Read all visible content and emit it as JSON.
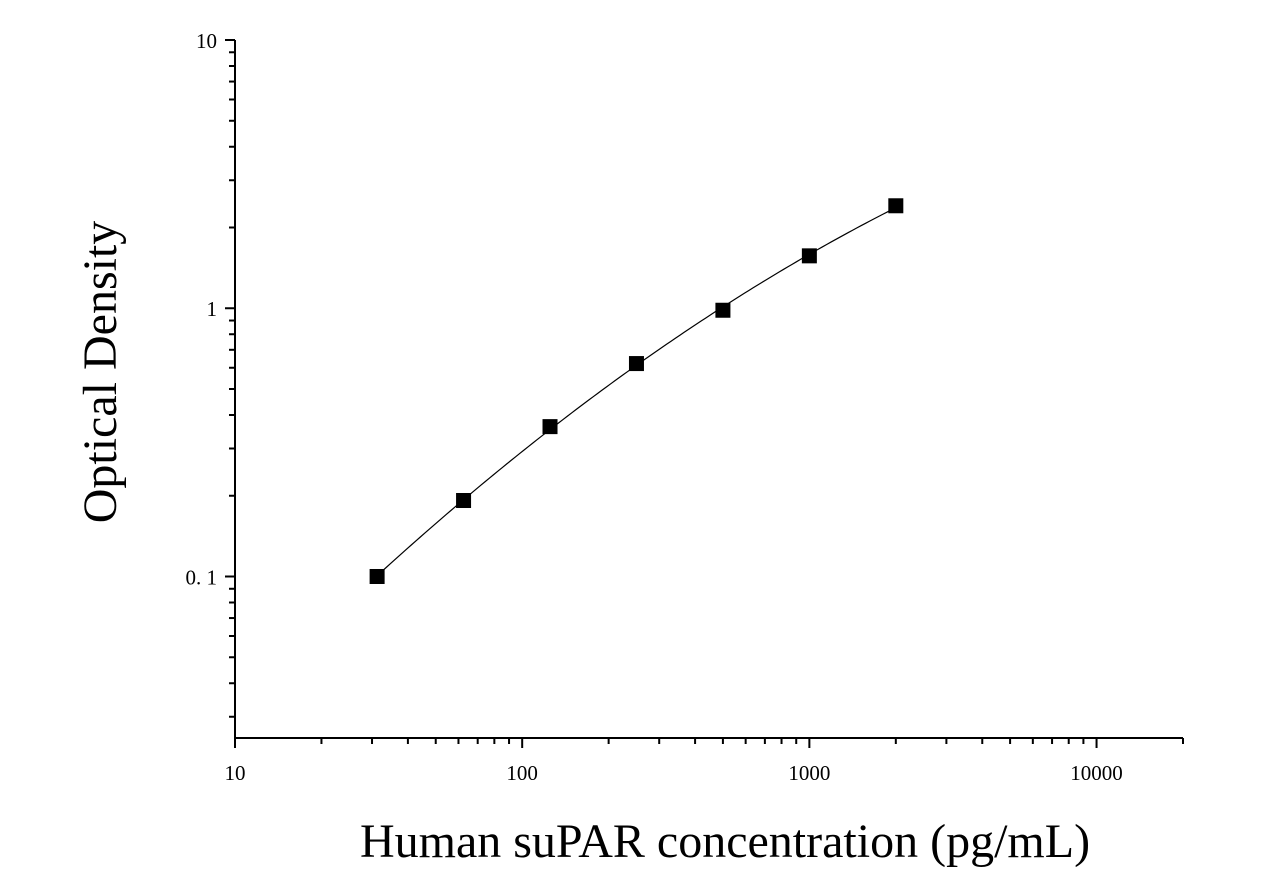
{
  "chart_data": {
    "type": "scatter",
    "title": "",
    "xlabel": "Human suPAR concentration (pg/mL)",
    "ylabel": "Optical Density",
    "x_scale": "log",
    "y_scale": "log",
    "xlim": [
      10,
      20000
    ],
    "ylim": [
      0.025,
      10
    ],
    "x_ticks": [
      10,
      100,
      1000,
      10000
    ],
    "x_tick_labels": [
      "10",
      "100",
      "1000",
      "10000"
    ],
    "y_ticks": [
      0.1,
      1,
      10
    ],
    "y_tick_labels": [
      "0. 1",
      "1",
      "10"
    ],
    "grid": false,
    "legend": "none",
    "marker": "square",
    "fit_curve": true,
    "colors": {
      "marker": "#000000",
      "curve": "#000000",
      "axis": "#000000"
    },
    "series": [
      {
        "x": [
          31.25,
          62.5,
          125,
          250,
          500,
          1000,
          2000
        ],
        "y": [
          0.1,
          0.192,
          0.362,
          0.622,
          0.983,
          1.568,
          2.41
        ]
      }
    ]
  }
}
